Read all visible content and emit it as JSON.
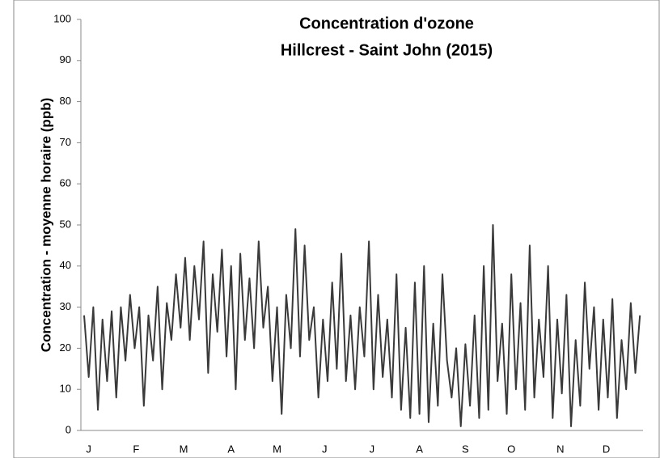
{
  "chart_data": {
    "type": "line",
    "title": [
      "Concentration d'ozone",
      "Hillcrest - Saint John (2015)"
    ],
    "y_label": "Concentration - moyenne horaire (ppb)",
    "ylim": [
      0,
      100
    ],
    "yticks": [
      0,
      10,
      20,
      30,
      40,
      50,
      60,
      70,
      80,
      90,
      100
    ],
    "xlim": [
      0,
      365
    ],
    "xticks": [
      {
        "value": 3,
        "label": "J"
      },
      {
        "value": 34,
        "label": "F"
      },
      {
        "value": 65,
        "label": "M"
      },
      {
        "value": 96,
        "label": "A"
      },
      {
        "value": 126,
        "label": "M"
      },
      {
        "value": 157,
        "label": "J"
      },
      {
        "value": 188,
        "label": "J"
      },
      {
        "value": 219,
        "label": "A"
      },
      {
        "value": 249,
        "label": "S"
      },
      {
        "value": 279,
        "label": "O"
      },
      {
        "value": 311,
        "label": "N"
      },
      {
        "value": 341,
        "label": "D"
      }
    ],
    "x": [
      0,
      3,
      6,
      9,
      12,
      15,
      18,
      21,
      24,
      27,
      30,
      33,
      36,
      39,
      42,
      45,
      48,
      51,
      54,
      57,
      60,
      63,
      66,
      69,
      72,
      75,
      78,
      81,
      84,
      87,
      90,
      93,
      96,
      99,
      102,
      105,
      108,
      111,
      114,
      117,
      120,
      123,
      126,
      129,
      132,
      135,
      138,
      141,
      144,
      147,
      150,
      153,
      156,
      159,
      162,
      165,
      168,
      171,
      174,
      177,
      180,
      183,
      186,
      189,
      192,
      195,
      198,
      201,
      204,
      207,
      210,
      213,
      216,
      219,
      222,
      225,
      228,
      231,
      234,
      237,
      240,
      243,
      246,
      249,
      252,
      255,
      258,
      261,
      264,
      267,
      270,
      273,
      276,
      279,
      282,
      285,
      288,
      291,
      294,
      297,
      300,
      303,
      306,
      309,
      312,
      315,
      318,
      321,
      324,
      327,
      330,
      333,
      336,
      339,
      342,
      345,
      348,
      351,
      354,
      357,
      360,
      363
    ],
    "series": [
      {
        "color": "#3a3a3a",
        "values": [
          28,
          13,
          30,
          5,
          27,
          12,
          29,
          8,
          30,
          17,
          33,
          20,
          30,
          6,
          28,
          17,
          35,
          10,
          31,
          22,
          38,
          25,
          42,
          22,
          40,
          27,
          46,
          14,
          38,
          24,
          44,
          18,
          40,
          10,
          43,
          22,
          37,
          20,
          46,
          25,
          35,
          12,
          30,
          4,
          33,
          20,
          49,
          18,
          45,
          22,
          30,
          8,
          27,
          12,
          36,
          15,
          43,
          12,
          28,
          10,
          30,
          18,
          46,
          10,
          33,
          13,
          27,
          8,
          38,
          5,
          25,
          3,
          36,
          4,
          40,
          2,
          26,
          6,
          38,
          17,
          8,
          20,
          1,
          21,
          6,
          28,
          3,
          40,
          5,
          50,
          12,
          26,
          4,
          38,
          10,
          31,
          5,
          45,
          8,
          27,
          13,
          40,
          3,
          27,
          9,
          33,
          1,
          22,
          6,
          36,
          15,
          30,
          5,
          27,
          8,
          32,
          3,
          22,
          10,
          31,
          14,
          28
        ]
      }
    ]
  }
}
